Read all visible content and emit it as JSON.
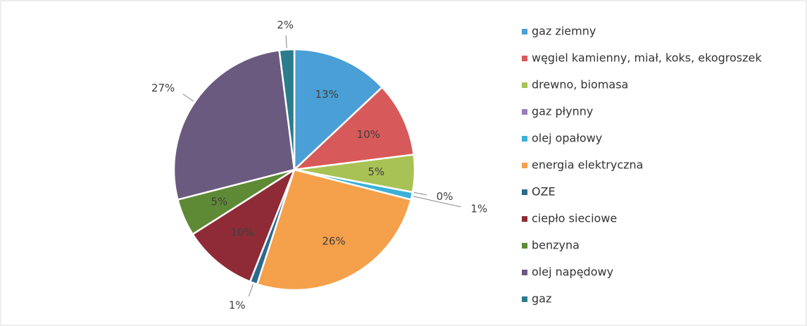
{
  "chart_data": {
    "type": "pie",
    "categories": [
      "gaz ziemny",
      "węgiel kamienny, miał, koks, ekogroszek",
      "drewno, biomasa",
      "gaz płynny",
      "olej opałowy",
      "energia elektryczna",
      "OZE",
      "ciepło sieciowe",
      "benzyna",
      "olej napędowy",
      "gaz"
    ],
    "values": [
      13,
      10,
      5,
      0,
      1,
      26,
      1,
      10,
      5,
      27,
      2
    ],
    "value_labels": [
      "13%",
      "10%",
      "5%",
      "0%",
      "1%",
      "26%",
      "1%",
      "10%",
      "5%",
      "27%",
      "2%"
    ],
    "colors": [
      "#4a9fd6",
      "#d8595a",
      "#a8c256",
      "#9a7cb8",
      "#3bb0d8",
      "#f5a04a",
      "#2b6a8f",
      "#8e2b36",
      "#5e8a35",
      "#6b5a7f",
      "#2b7c8c"
    ],
    "legend": "right"
  }
}
